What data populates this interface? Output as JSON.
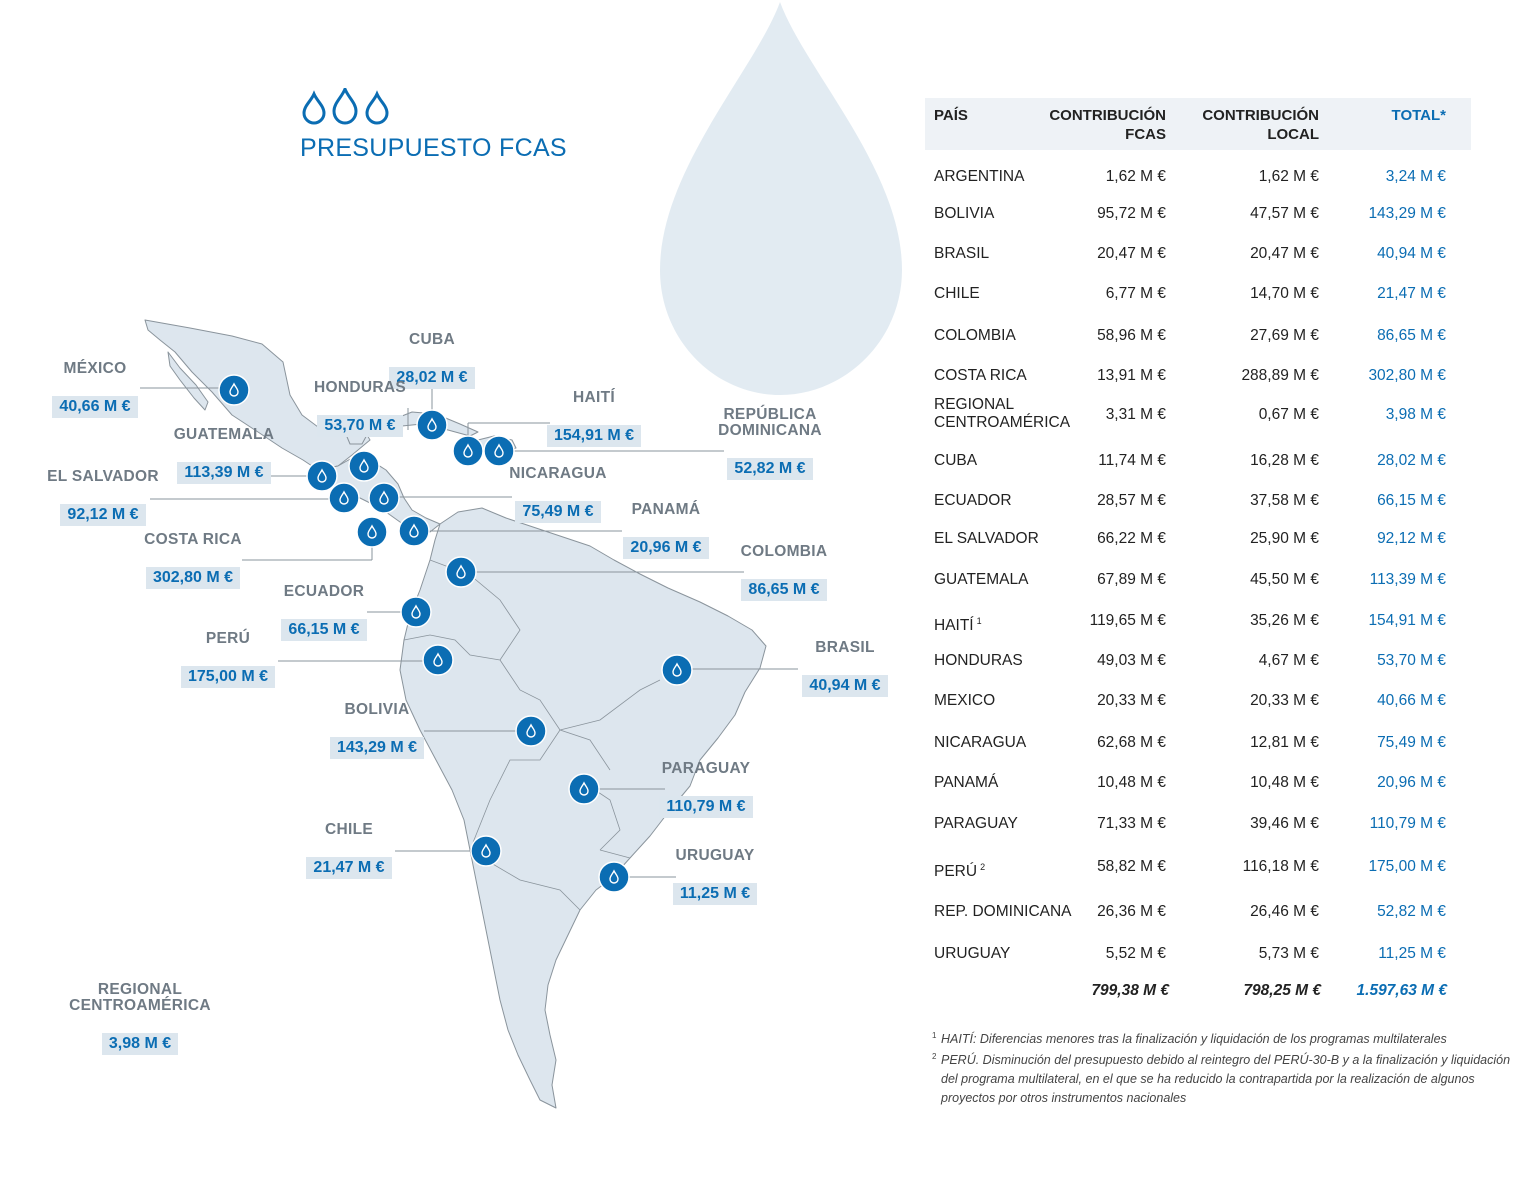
{
  "title": "PRESUPUESTO FCAS",
  "map_labels": [
    {
      "key": "mexico",
      "name": "MÉXICO",
      "value": "40,66 M €"
    },
    {
      "key": "cuba",
      "name": "CUBA",
      "value": "28,02 M €"
    },
    {
      "key": "honduras",
      "name": "HONDURAS",
      "value": "53,70 M €"
    },
    {
      "key": "haiti",
      "name": "HAITÍ",
      "value": "154,91 M €"
    },
    {
      "key": "rep_dominicana",
      "name": "REPÚBLICA\nDOMINICANA",
      "value": "52,82 M €"
    },
    {
      "key": "guatemala",
      "name": "GUATEMALA",
      "value": "113,39 M €"
    },
    {
      "key": "el_salvador",
      "name": "EL SALVADOR",
      "value": "92,12 M €"
    },
    {
      "key": "nicaragua",
      "name": "NICARAGUA",
      "value": "75,49 M €"
    },
    {
      "key": "panama",
      "name": "PANAMÁ",
      "value": "20,96 M €"
    },
    {
      "key": "costa_rica",
      "name": "COSTA RICA",
      "value": "302,80 M €"
    },
    {
      "key": "colombia",
      "name": "COLOMBIA",
      "value": "86,65 M €"
    },
    {
      "key": "ecuador",
      "name": "ECUADOR",
      "value": "66,15 M €"
    },
    {
      "key": "peru",
      "name": "PERÚ",
      "value": "175,00 M €"
    },
    {
      "key": "brasil",
      "name": "BRASIL",
      "value": "40,94 M €"
    },
    {
      "key": "bolivia",
      "name": "BOLIVIA",
      "value": "143,29 M €"
    },
    {
      "key": "paraguay",
      "name": "PARAGUAY",
      "value": "110,79 M €"
    },
    {
      "key": "chile",
      "name": "CHILE",
      "value": "21,47 M €"
    },
    {
      "key": "uruguay",
      "name": "URUGUAY",
      "value": "11,25 M €"
    },
    {
      "key": "regional",
      "name": "REGIONAL\nCENTROAMÉRICA",
      "value": "3,98 M €"
    }
  ],
  "table": {
    "headers": {
      "pais": "PAÍS",
      "fcas": "CONTRIBUCIÓN\nFCAS",
      "local": "CONTRIBUCIÓN\nLOCAL",
      "total": "TOTAL*"
    },
    "rows": [
      {
        "pais": "ARGENTINA",
        "sup": "",
        "fcas": "1,62 M €",
        "local": "1,62 M €",
        "total": "3,24 M €"
      },
      {
        "pais": "BOLIVIA",
        "sup": "",
        "fcas": "95,72 M €",
        "local": "47,57 M €",
        "total": "143,29 M €"
      },
      {
        "pais": "BRASIL",
        "sup": "",
        "fcas": "20,47 M €",
        "local": "20,47 M €",
        "total": "40,94 M €"
      },
      {
        "pais": "CHILE",
        "sup": "",
        "fcas": "6,77 M €",
        "local": "14,70 M €",
        "total": "21,47 M €"
      },
      {
        "pais": "COLOMBIA",
        "sup": "",
        "fcas": "58,96 M €",
        "local": "27,69 M €",
        "total": "86,65 M €"
      },
      {
        "pais": "COSTA RICA",
        "sup": "",
        "fcas": "13,91 M €",
        "local": "288,89 M €",
        "total": "302,80 M €"
      },
      {
        "pais": "REGIONAL\nCENTROAMÉRICA",
        "sup": "",
        "fcas": "3,31 M €",
        "local": "0,67 M €",
        "total": "3,98 M €"
      },
      {
        "pais": "CUBA",
        "sup": "",
        "fcas": "11,74 M €",
        "local": "16,28 M €",
        "total": "28,02 M €"
      },
      {
        "pais": "ECUADOR",
        "sup": "",
        "fcas": "28,57 M €",
        "local": "37,58 M €",
        "total": "66,15 M €"
      },
      {
        "pais": "EL SALVADOR",
        "sup": "",
        "fcas": "66,22 M €",
        "local": "25,90 M €",
        "total": "92,12 M €"
      },
      {
        "pais": "GUATEMALA",
        "sup": "",
        "fcas": "67,89 M €",
        "local": "45,50 M €",
        "total": "113,39 M €"
      },
      {
        "pais": "HAITÍ",
        "sup": "1",
        "fcas": "119,65 M €",
        "local": "35,26 M €",
        "total": "154,91 M €"
      },
      {
        "pais": "HONDURAS",
        "sup": "",
        "fcas": "49,03 M €",
        "local": "4,67 M €",
        "total": "53,70 M €"
      },
      {
        "pais": "MEXICO",
        "sup": "",
        "fcas": "20,33 M €",
        "local": "20,33 M €",
        "total": "40,66 M €"
      },
      {
        "pais": "NICARAGUA",
        "sup": "",
        "fcas": "62,68 M €",
        "local": "12,81 M €",
        "total": "75,49 M €"
      },
      {
        "pais": "PANAMÁ",
        "sup": "",
        "fcas": "10,48 M €",
        "local": "10,48 M €",
        "total": "20,96 M €"
      },
      {
        "pais": "PARAGUAY",
        "sup": "",
        "fcas": "71,33 M €",
        "local": "39,46 M €",
        "total": "110,79 M €"
      },
      {
        "pais": "PERÚ",
        "sup": "2",
        "fcas": "58,82 M €",
        "local": "116,18 M €",
        "total": "175,00 M €"
      },
      {
        "pais": "REP. DOMINICANA",
        "sup": "",
        "fcas": "26,36 M €",
        "local": "26,46 M €",
        "total": "52,82 M €"
      },
      {
        "pais": "URUGUAY",
        "sup": "",
        "fcas": "5,52 M €",
        "local": "5,73 M €",
        "total": "11,25 M €"
      }
    ],
    "totals": {
      "fcas": "799,38  M €",
      "local": "798,25  M €",
      "total": "1.597,63  M €"
    }
  },
  "notes": [
    {
      "sup": "1",
      "text": "HAITÍ: Diferencias menores tras la finalización y liquidación de los programas multilaterales"
    },
    {
      "sup": "2",
      "text": "PERÚ. Disminución del presupuesto debido al reintegro del PERÚ-30-B y a la finalización y liquidación del programa multilateral, en el que se ha reducido la contrapartida por la realización de algunos proyectos por otros instrumentos nacionales"
    }
  ],
  "colors": {
    "accent": "#0b6db3",
    "label_box": "#dce6ee",
    "land": "#dde6ee",
    "drop": "#e2ebf2"
  }
}
